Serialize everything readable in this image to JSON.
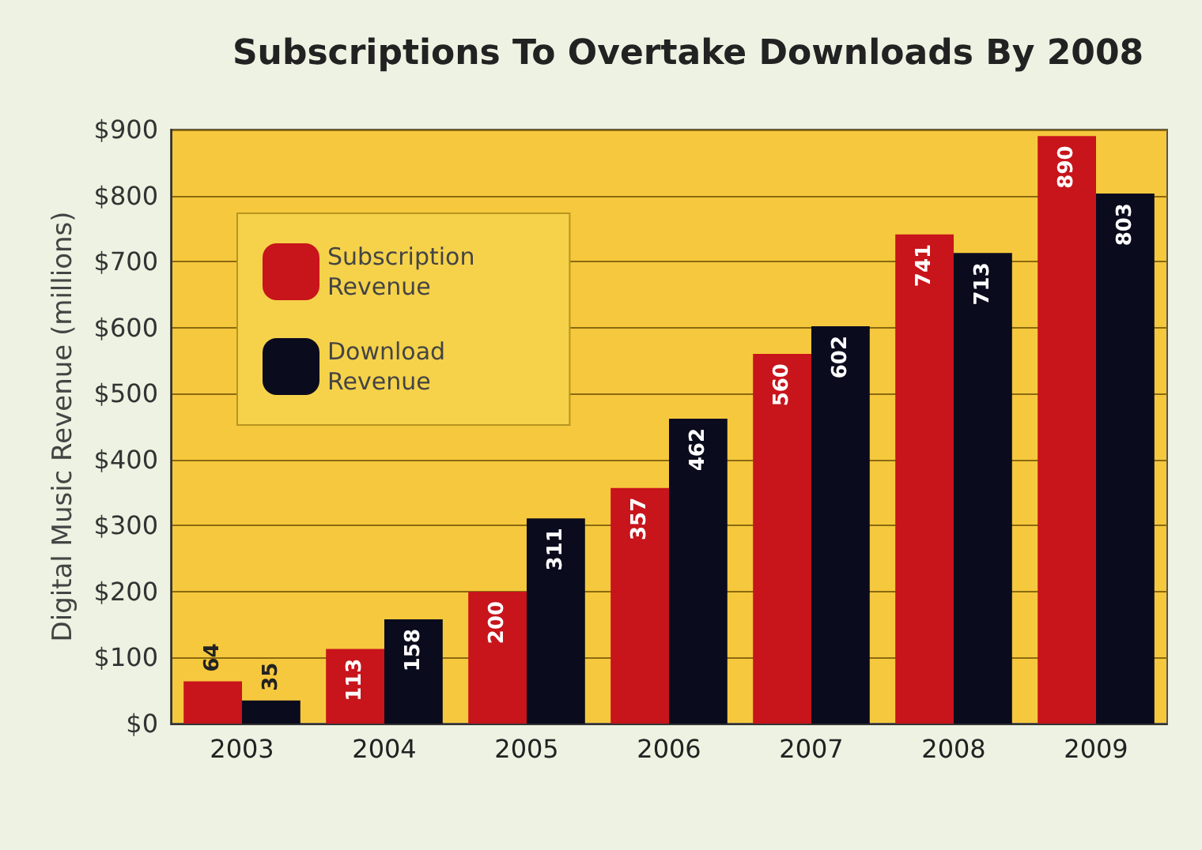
{
  "chart_data": {
    "type": "bar",
    "title": "Subscriptions To Overtake Downloads By 2008",
    "ylabel": "Digital Music Revenue (millions)",
    "categories": [
      "2003",
      "2004",
      "2005",
      "2006",
      "2007",
      "2008",
      "2009"
    ],
    "series": [
      {
        "name": "Subscription\nRevenue",
        "color": "#c8141b",
        "values": [
          64,
          113,
          200,
          357,
          560,
          741,
          890
        ]
      },
      {
        "name": "Download\nRevenue",
        "color": "#0b0b1e",
        "values": [
          35,
          158,
          311,
          462,
          602,
          713,
          803
        ]
      }
    ],
    "ylim": [
      0,
      900
    ],
    "yticks": [
      {
        "value": 0,
        "label": "$0"
      },
      {
        "value": 100,
        "label": "$100"
      },
      {
        "value": 200,
        "label": "$200"
      },
      {
        "value": 300,
        "label": "$300"
      },
      {
        "value": 400,
        "label": "$400"
      },
      {
        "value": 500,
        "label": "$500"
      },
      {
        "value": 600,
        "label": "$600"
      },
      {
        "value": 700,
        "label": "$700"
      },
      {
        "value": 800,
        "label": "$800"
      },
      {
        "value": 900,
        "label": "$900"
      }
    ],
    "grid": "y",
    "legend": "top left",
    "data_labels": true
  }
}
